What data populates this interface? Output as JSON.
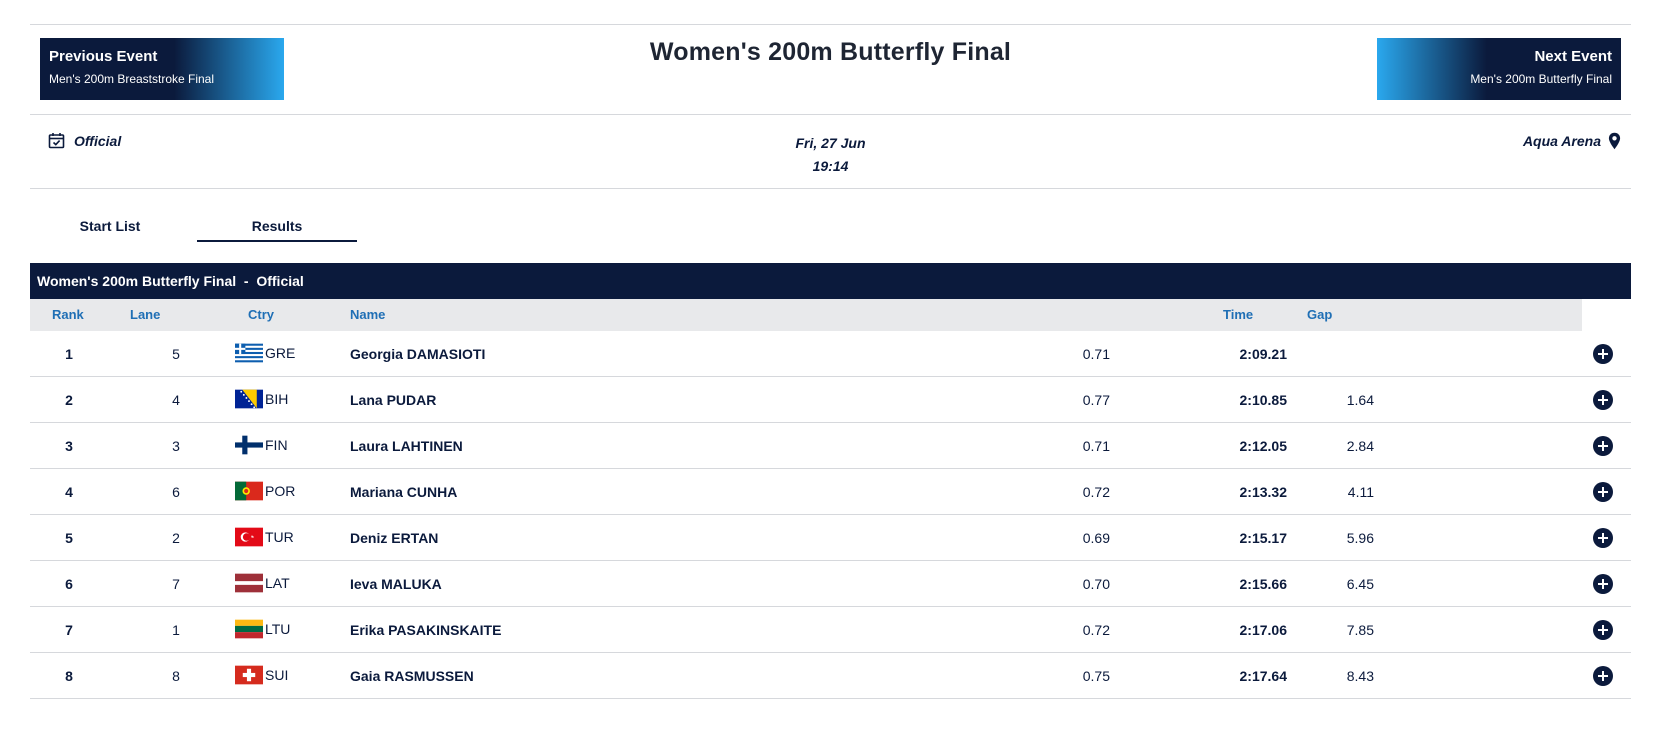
{
  "header": {
    "title": "Women's 200m Butterfly Final",
    "previous": {
      "label": "Previous Event",
      "event": "Men's 200m Breaststroke Final"
    },
    "next": {
      "label": "Next Event",
      "event": "Men's 200m Butterfly Final"
    }
  },
  "meta": {
    "status": "Official",
    "date": "Fri, 27 Jun",
    "time": "19:14",
    "venue": "Aqua Arena"
  },
  "tabs": [
    {
      "label": "Start List"
    },
    {
      "label": "Results",
      "active": true
    }
  ],
  "table": {
    "title": "Women's 200m Butterfly Final  -  Official",
    "columns": {
      "rank": "Rank",
      "lane": "Lane",
      "ctry": "Ctry",
      "name": "Name",
      "time": "Time",
      "gap": "Gap"
    },
    "rows": [
      {
        "rank": "1",
        "lane": "5",
        "ctry": "GRE",
        "name": "Georgia DAMASIOTI",
        "reaction": "0.71",
        "time": "2:09.21",
        "gap": ""
      },
      {
        "rank": "2",
        "lane": "4",
        "ctry": "BIH",
        "name": "Lana PUDAR",
        "reaction": "0.77",
        "time": "2:10.85",
        "gap": "1.64"
      },
      {
        "rank": "3",
        "lane": "3",
        "ctry": "FIN",
        "name": "Laura LAHTINEN",
        "reaction": "0.71",
        "time": "2:12.05",
        "gap": "2.84"
      },
      {
        "rank": "4",
        "lane": "6",
        "ctry": "POR",
        "name": "Mariana CUNHA",
        "reaction": "0.72",
        "time": "2:13.32",
        "gap": "4.11"
      },
      {
        "rank": "5",
        "lane": "2",
        "ctry": "TUR",
        "name": "Deniz ERTAN",
        "reaction": "0.69",
        "time": "2:15.17",
        "gap": "5.96"
      },
      {
        "rank": "6",
        "lane": "7",
        "ctry": "LAT",
        "name": "Ieva MALUKA",
        "reaction": "0.70",
        "time": "2:15.66",
        "gap": "6.45"
      },
      {
        "rank": "7",
        "lane": "1",
        "ctry": "LTU",
        "name": "Erika PASAKINSKAITE",
        "reaction": "0.72",
        "time": "2:17.06",
        "gap": "7.85"
      },
      {
        "rank": "8",
        "lane": "8",
        "ctry": "SUI",
        "name": "Gaia RASMUSSEN",
        "reaction": "0.75",
        "time": "2:17.64",
        "gap": "8.43"
      }
    ]
  },
  "colors": {
    "navy": "#0b1a3c",
    "accent_blue": "#2aa8ee",
    "column_header_text": "#1f6fb5",
    "column_header_bg": "#e8e9eb"
  },
  "icons": {
    "status": "calendar-check-icon",
    "venue": "map-pin-icon",
    "row_action": "plus-circle-icon"
  }
}
